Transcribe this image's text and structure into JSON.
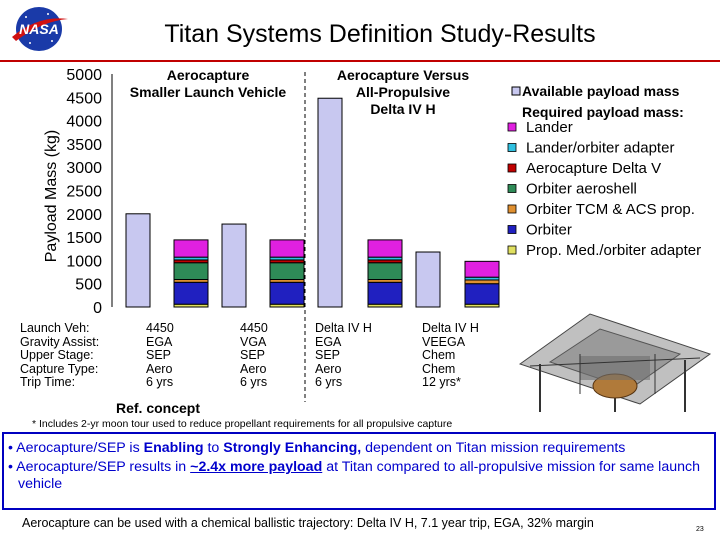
{
  "logo_text": "NASA",
  "title": "Titan Systems Definition Study-Results",
  "chart_data": {
    "type": "bar",
    "subtype": "stacked-grouped",
    "ylabel": "Payload Mass (kg)",
    "ylim": [
      0,
      5000
    ],
    "yticks": [
      0,
      500,
      1000,
      1500,
      2000,
      2500,
      3000,
      3500,
      4000,
      4500,
      5000
    ],
    "section_titles": [
      "Aerocapture Smaller Launch Vehicle",
      "Aerocapture Versus All-Propulsive Delta IV H"
    ],
    "available_payload": [
      2000,
      1780,
      4480,
      1180
    ],
    "required_stacks": [
      {
        "lander": 370,
        "lander_orbiter_adapter": 60,
        "aerocapture_delta_v": 60,
        "orbiter_aeroshell": 360,
        "orbiter_tcm_acs_prop": 60,
        "orbiter": 470,
        "prop_med_orbiter_adapter": 60
      },
      {
        "lander": 370,
        "lander_orbiter_adapter": 60,
        "aerocapture_delta_v": 60,
        "orbiter_aeroshell": 360,
        "orbiter_tcm_acs_prop": 60,
        "orbiter": 470,
        "prop_med_orbiter_adapter": 60
      },
      {
        "lander": 370,
        "lander_orbiter_adapter": 60,
        "aerocapture_delta_v": 60,
        "orbiter_aeroshell": 360,
        "orbiter_tcm_acs_prop": 60,
        "orbiter": 470,
        "prop_med_orbiter_adapter": 60
      },
      {
        "lander": 340,
        "lander_orbiter_adapter": 60,
        "aerocapture_delta_v": 0,
        "orbiter_aeroshell": 0,
        "orbiter_tcm_acs_prop": 80,
        "orbiter": 440,
        "prop_med_orbiter_adapter": 60
      }
    ],
    "legend": {
      "available_label": "Available payload mass",
      "required_label": "Required payload mass:",
      "items": [
        {
          "key": "lander",
          "label": "Lander",
          "color": "#e020e0"
        },
        {
          "key": "lander_orbiter_adapter",
          "label": "Lander/orbiter adapter",
          "color": "#30c0e0"
        },
        {
          "key": "aerocapture_delta_v",
          "label": "Aerocapture Delta V",
          "color": "#c00000"
        },
        {
          "key": "orbiter_aeroshell",
          "label": "Orbiter aeroshell",
          "color": "#2e8b57"
        },
        {
          "key": "orbiter_tcm_acs_prop",
          "label": "Orbiter TCM & ACS prop.",
          "color": "#e09030"
        },
        {
          "key": "orbiter",
          "label": "Orbiter",
          "color": "#2020c0"
        },
        {
          "key": "prop_med_orbiter_adapter",
          "label": "Prop. Med./orbiter adapter",
          "color": "#e0e060"
        }
      ]
    },
    "colors": {
      "available": "#c8c8f0",
      "bar_outline": "#000000",
      "divider": "#000000"
    }
  },
  "row_labels": [
    "Launch Veh:",
    "Gravity Assist:",
    "Upper Stage:",
    "Capture Type:",
    "Trip Time:"
  ],
  "columns": [
    [
      "4450",
      "EGA",
      "SEP",
      "Aero",
      "6 yrs"
    ],
    [
      "4450",
      "VGA",
      "SEP",
      "Aero",
      "6 yrs"
    ],
    [
      "Delta IV H",
      "EGA",
      "SEP",
      "Aero",
      "6 yrs"
    ],
    [
      "Delta IV H",
      "VEEGA",
      "Chem",
      "Chem",
      "12 yrs*"
    ]
  ],
  "ref_concept": "Ref. concept",
  "footnote": "* Includes 2-yr moon tour used to reduce propellant requirements for all propulsive capture",
  "bullets": {
    "b1_pre": "• Aerocapture/SEP is ",
    "b1_bold1": "Enabling",
    "b1_mid": " to ",
    "b1_bold2": "Strongly Enhancing,",
    "b1_post": " dependent on Titan mission requirements",
    "b2_pre": "• Aerocapture/SEP results in ",
    "b2_bold": "~2.4x more payload",
    "b2_post": " at Titan compared to all-propulsive mission for same launch vehicle"
  },
  "bottom_note": "Aerocapture can be used with a chemical ballistic trajectory: Delta IV H, 7.1 year trip, EGA, 32% margin",
  "page_number": "23"
}
